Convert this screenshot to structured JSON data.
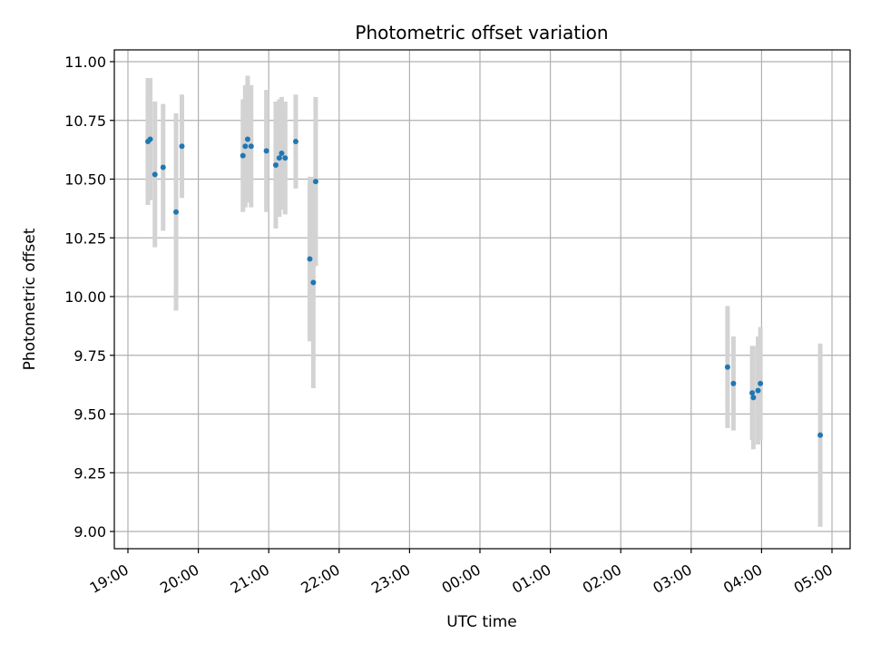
{
  "chart_data": {
    "type": "scatter",
    "title": "Photometric offset variation",
    "xlabel": "UTC time",
    "ylabel": "Photometric offset",
    "grid": true,
    "ylim": [
      8.95,
      11.05
    ],
    "xlim": [
      "19:00",
      "05:00"
    ],
    "x_tick_labels": [
      "19:00",
      "20:00",
      "21:00",
      "22:00",
      "23:00",
      "00:00",
      "01:00",
      "02:00",
      "03:00",
      "04:00",
      "05:00"
    ],
    "y_tick_labels": [
      "9.00",
      "9.25",
      "9.50",
      "9.75",
      "10.00",
      "10.25",
      "10.50",
      "10.75",
      "11.00"
    ],
    "colors": {
      "point": "#1f77b4",
      "errorbar": "#d3d3d3"
    },
    "points": [
      {
        "x": "19:17",
        "y": 10.66,
        "err": 0.27
      },
      {
        "x": "19:19",
        "y": 10.67,
        "err": 0.26
      },
      {
        "x": "19:23",
        "y": 10.52,
        "err": 0.31
      },
      {
        "x": "19:30",
        "y": 10.55,
        "err": 0.27
      },
      {
        "x": "19:41",
        "y": 10.36,
        "err": 0.42
      },
      {
        "x": "19:46",
        "y": 10.64,
        "err": 0.22
      },
      {
        "x": "20:38",
        "y": 10.6,
        "err": 0.24
      },
      {
        "x": "20:40",
        "y": 10.64,
        "err": 0.26
      },
      {
        "x": "20:42",
        "y": 10.67,
        "err": 0.27
      },
      {
        "x": "20:45",
        "y": 10.64,
        "err": 0.26
      },
      {
        "x": "20:58",
        "y": 10.62,
        "err": 0.26
      },
      {
        "x": "21:06",
        "y": 10.56,
        "err": 0.27
      },
      {
        "x": "21:09",
        "y": 10.59,
        "err": 0.25
      },
      {
        "x": "21:11",
        "y": 10.61,
        "err": 0.24
      },
      {
        "x": "21:14",
        "y": 10.59,
        "err": 0.24
      },
      {
        "x": "21:23",
        "y": 10.66,
        "err": 0.2
      },
      {
        "x": "21:35",
        "y": 10.16,
        "err": 0.35
      },
      {
        "x": "21:38",
        "y": 10.06,
        "err": 0.45
      },
      {
        "x": "21:40",
        "y": 10.49,
        "err": 0.36
      },
      {
        "x": "03:31",
        "y": 9.7,
        "err": 0.26
      },
      {
        "x": "03:36",
        "y": 9.63,
        "err": 0.2
      },
      {
        "x": "03:52",
        "y": 9.59,
        "err": 0.2
      },
      {
        "x": "03:53",
        "y": 9.57,
        "err": 0.22
      },
      {
        "x": "03:57",
        "y": 9.6,
        "err": 0.23
      },
      {
        "x": "03:59",
        "y": 9.63,
        "err": 0.24
      },
      {
        "x": "04:50",
        "y": 9.41,
        "err": 0.39
      }
    ]
  }
}
